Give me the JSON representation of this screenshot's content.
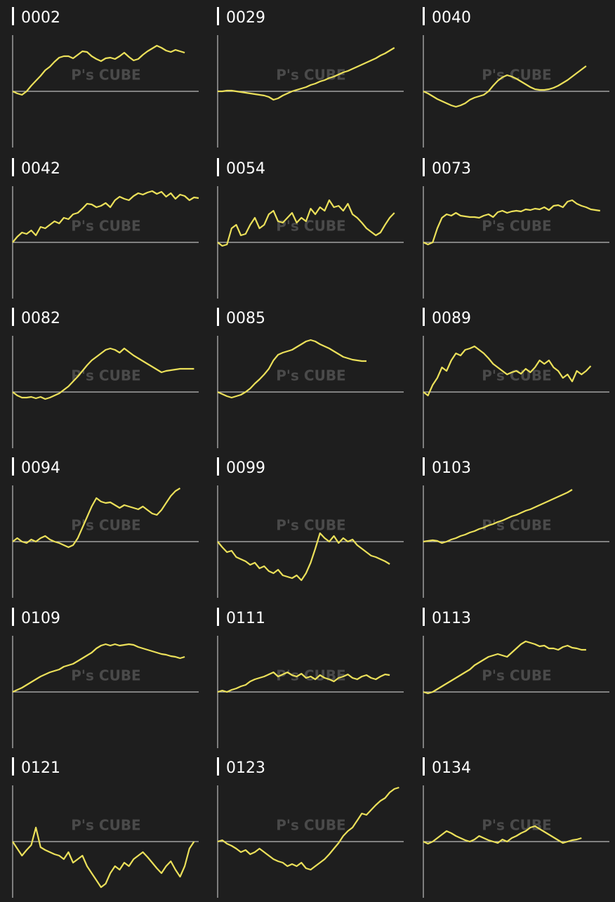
{
  "watermark": "P's CUBE",
  "chart_data": [
    {
      "type": "line",
      "title": "0002",
      "color": "#ebe05a",
      "xlim": [
        0,
        40
      ],
      "ylim": [
        -80,
        80
      ],
      "values": [
        0,
        -3,
        -5,
        0,
        8,
        15,
        22,
        30,
        35,
        42,
        48,
        50,
        50,
        47,
        52,
        57,
        56,
        50,
        46,
        43,
        47,
        48,
        46,
        50,
        55,
        49,
        44,
        46,
        52,
        57,
        61,
        65,
        62,
        58,
        56,
        59,
        57,
        55
      ]
    },
    {
      "type": "line",
      "title": "0029",
      "color": "#ebe05a",
      "xlim": [
        0,
        40
      ],
      "ylim": [
        -80,
        80
      ],
      "values": [
        0,
        0,
        1,
        1,
        0,
        -1,
        -2,
        -3,
        -4,
        -5,
        -6,
        -8,
        -12,
        -10,
        -6,
        -3,
        0,
        2,
        4,
        6,
        9,
        11,
        14,
        16,
        19,
        21,
        24,
        27,
        29,
        32,
        35,
        38,
        41,
        44,
        47,
        51,
        54,
        58,
        62
      ]
    },
    {
      "type": "line",
      "title": "0040",
      "color": "#ebe05a",
      "xlim": [
        0,
        40
      ],
      "ylim": [
        -80,
        80
      ],
      "values": [
        0,
        -3,
        -7,
        -11,
        -14,
        -17,
        -20,
        -22,
        -20,
        -17,
        -12,
        -9,
        -7,
        -5,
        0,
        8,
        15,
        20,
        23,
        21,
        18,
        14,
        10,
        6,
        3,
        2,
        2,
        3,
        5,
        8,
        12,
        16,
        21,
        26,
        31,
        36
      ]
    },
    {
      "type": "line",
      "title": "0042",
      "color": "#ebe05a",
      "xlim": [
        0,
        40
      ],
      "ylim": [
        -80,
        80
      ],
      "values": [
        0,
        8,
        14,
        12,
        17,
        10,
        22,
        20,
        25,
        30,
        27,
        35,
        33,
        40,
        42,
        48,
        55,
        54,
        50,
        52,
        56,
        50,
        60,
        65,
        62,
        60,
        66,
        70,
        68,
        71,
        73,
        69,
        72,
        65,
        70,
        62,
        68,
        66,
        60,
        64,
        63
      ]
    },
    {
      "type": "line",
      "title": "0054",
      "color": "#ebe05a",
      "xlim": [
        0,
        40
      ],
      "ylim": [
        -80,
        80
      ],
      "values": [
        0,
        -5,
        -3,
        20,
        25,
        10,
        12,
        25,
        35,
        20,
        25,
        40,
        45,
        30,
        28,
        35,
        42,
        28,
        35,
        30,
        48,
        40,
        50,
        45,
        60,
        50,
        52,
        45,
        55,
        40,
        35,
        28,
        20,
        15,
        10,
        14,
        25,
        35,
        42
      ]
    },
    {
      "type": "line",
      "title": "0073",
      "color": "#ebe05a",
      "xlim": [
        0,
        40
      ],
      "ylim": [
        -80,
        80
      ],
      "values": [
        0,
        -3,
        0,
        20,
        35,
        40,
        38,
        42,
        38,
        37,
        36,
        36,
        35,
        38,
        40,
        36,
        43,
        45,
        42,
        44,
        45,
        44,
        47,
        46,
        48,
        47,
        50,
        46,
        52,
        53,
        50,
        58,
        60,
        55,
        52,
        50,
        47,
        46,
        45
      ]
    },
    {
      "type": "line",
      "title": "0082",
      "color": "#ebe05a",
      "xlim": [
        0,
        40
      ],
      "ylim": [
        -80,
        80
      ],
      "values": [
        0,
        -5,
        -8,
        -8,
        -7,
        -9,
        -7,
        -10,
        -8,
        -5,
        -2,
        3,
        8,
        15,
        22,
        30,
        38,
        45,
        50,
        55,
        60,
        62,
        60,
        56,
        62,
        57,
        52,
        48,
        44,
        40,
        36,
        32,
        28,
        30,
        31,
        32,
        33,
        33,
        33,
        33
      ]
    },
    {
      "type": "line",
      "title": "0085",
      "color": "#ebe05a",
      "xlim": [
        0,
        40
      ],
      "ylim": [
        -80,
        80
      ],
      "values": [
        0,
        -3,
        -6,
        -8,
        -6,
        -4,
        0,
        5,
        12,
        18,
        25,
        33,
        45,
        53,
        56,
        58,
        60,
        64,
        68,
        72,
        74,
        72,
        68,
        65,
        62,
        58,
        54,
        50,
        48,
        46,
        45,
        44,
        44
      ]
    },
    {
      "type": "line",
      "title": "0089",
      "color": "#ebe05a",
      "xlim": [
        0,
        40
      ],
      "ylim": [
        -80,
        80
      ],
      "values": [
        0,
        -5,
        10,
        20,
        35,
        30,
        45,
        55,
        52,
        60,
        62,
        65,
        60,
        55,
        48,
        40,
        35,
        30,
        25,
        28,
        30,
        26,
        33,
        28,
        35,
        45,
        40,
        45,
        35,
        30,
        20,
        25,
        15,
        30,
        25,
        30,
        37
      ]
    },
    {
      "type": "line",
      "title": "0094",
      "color": "#ebe05a",
      "xlim": [
        0,
        40
      ],
      "ylim": [
        -80,
        80
      ],
      "values": [
        0,
        5,
        0,
        -2,
        3,
        0,
        5,
        8,
        3,
        0,
        -2,
        -5,
        -8,
        -5,
        5,
        20,
        35,
        50,
        62,
        57,
        55,
        56,
        52,
        48,
        52,
        50,
        48,
        46,
        50,
        45,
        40,
        38,
        45,
        55,
        65,
        72,
        76
      ]
    },
    {
      "type": "line",
      "title": "0099",
      "color": "#ebe05a",
      "xlim": [
        0,
        40
      ],
      "ylim": [
        -80,
        80
      ],
      "values": [
        0,
        -8,
        -15,
        -13,
        -22,
        -25,
        -28,
        -33,
        -30,
        -38,
        -35,
        -42,
        -45,
        -40,
        -48,
        -50,
        -52,
        -48,
        -55,
        -45,
        -30,
        -10,
        12,
        5,
        0,
        8,
        -2,
        5,
        0,
        3,
        -5,
        -10,
        -15,
        -20,
        -22,
        -25,
        -28,
        -32
      ]
    },
    {
      "type": "line",
      "title": "0103",
      "color": "#ebe05a",
      "xlim": [
        0,
        40
      ],
      "ylim": [
        -80,
        80
      ],
      "values": [
        0,
        1,
        2,
        1,
        -2,
        0,
        3,
        5,
        8,
        10,
        13,
        15,
        18,
        20,
        23,
        25,
        28,
        30,
        33,
        36,
        38,
        41,
        44,
        46,
        49,
        52,
        55,
        58,
        61,
        64,
        67,
        70,
        74
      ]
    },
    {
      "type": "line",
      "title": "0109",
      "color": "#ebe05a",
      "xlim": [
        0,
        40
      ],
      "ylim": [
        -80,
        80
      ],
      "values": [
        0,
        3,
        6,
        10,
        14,
        18,
        22,
        25,
        28,
        30,
        32,
        36,
        38,
        40,
        44,
        48,
        52,
        56,
        62,
        66,
        68,
        66,
        68,
        66,
        67,
        68,
        67,
        64,
        62,
        60,
        58,
        56,
        54,
        53,
        51,
        50,
        48,
        50
      ]
    },
    {
      "type": "line",
      "title": "0111",
      "color": "#ebe05a",
      "xlim": [
        0,
        40
      ],
      "ylim": [
        -80,
        80
      ],
      "values": [
        0,
        2,
        0,
        3,
        5,
        8,
        10,
        15,
        18,
        20,
        22,
        25,
        28,
        22,
        25,
        28,
        24,
        22,
        26,
        20,
        22,
        18,
        24,
        20,
        18,
        15,
        20,
        22,
        25,
        20,
        18,
        22,
        24,
        20,
        18,
        22,
        25,
        24
      ]
    },
    {
      "type": "line",
      "title": "0113",
      "color": "#ebe05a",
      "xlim": [
        0,
        40
      ],
      "ylim": [
        -80,
        80
      ],
      "values": [
        0,
        -2,
        0,
        4,
        8,
        12,
        16,
        20,
        24,
        28,
        32,
        38,
        42,
        46,
        50,
        52,
        54,
        52,
        50,
        56,
        62,
        68,
        72,
        70,
        68,
        65,
        66,
        62,
        62,
        60,
        64,
        66,
        63,
        62,
        60,
        60
      ]
    },
    {
      "type": "line",
      "title": "0121",
      "color": "#ebe05a",
      "xlim": [
        0,
        40
      ],
      "ylim": [
        -80,
        80
      ],
      "values": [
        0,
        -10,
        -20,
        -12,
        -5,
        20,
        -8,
        -12,
        -15,
        -18,
        -20,
        -25,
        -15,
        -30,
        -25,
        -20,
        -35,
        -45,
        -55,
        -65,
        -60,
        -45,
        -35,
        -40,
        -30,
        -35,
        -25,
        -20,
        -15,
        -22,
        -30,
        -38,
        -45,
        -35,
        -28,
        -40,
        -50,
        -35,
        -10,
        0
      ]
    },
    {
      "type": "line",
      "title": "0123",
      "color": "#ebe05a",
      "xlim": [
        0,
        40
      ],
      "ylim": [
        -80,
        80
      ],
      "values": [
        0,
        2,
        -3,
        -6,
        -10,
        -15,
        -12,
        -18,
        -15,
        -10,
        -15,
        -20,
        -25,
        -28,
        -30,
        -35,
        -32,
        -35,
        -30,
        -38,
        -40,
        -35,
        -30,
        -25,
        -18,
        -10,
        -2,
        8,
        15,
        20,
        30,
        40,
        38,
        45,
        52,
        58,
        62,
        70,
        75,
        77
      ]
    },
    {
      "type": "line",
      "title": "0134",
      "color": "#ebe05a",
      "xlim": [
        0,
        40
      ],
      "ylim": [
        -80,
        80
      ],
      "values": [
        0,
        -3,
        0,
        5,
        10,
        15,
        12,
        8,
        5,
        2,
        0,
        3,
        8,
        5,
        2,
        0,
        -2,
        3,
        0,
        5,
        8,
        12,
        15,
        20,
        22,
        18,
        14,
        10,
        6,
        2,
        -2,
        0,
        2,
        3,
        5
      ]
    }
  ]
}
